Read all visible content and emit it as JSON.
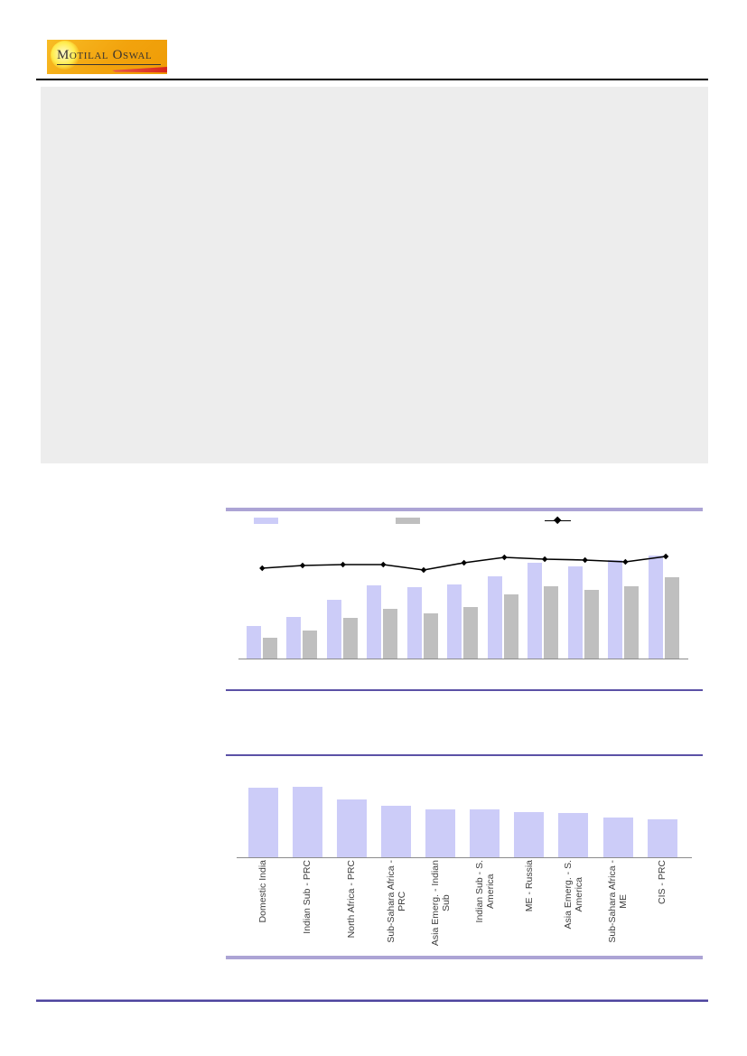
{
  "page": {
    "background": "#FFFFFF"
  },
  "header": {
    "logo": {
      "text": "Motilal Oswal",
      "bg_color": "#F2A30D",
      "text_color": "#393430",
      "swoosh_color": "#D8261B",
      "sun_color": "#FFEC4D"
    }
  },
  "summary_box": {
    "bg_color": "#EDEDED",
    "text": ""
  },
  "colors": {
    "bar_lavender": "#CCCCF8",
    "bar_gray": "#BFBFBF",
    "line_black": "#000000",
    "axis_gray": "#8C8C8C",
    "section_border_thick": "#ACA4D5",
    "divider_purple": "#5B51A6",
    "footer_line": "#4D449E",
    "label_text": "#3F3F3F"
  },
  "chart_data": [
    {
      "type": "bar",
      "subtype": "grouped-bars-with-line-overlay",
      "title": "",
      "xlabel": "",
      "ylabel": "",
      "axis_labels_visible": false,
      "grid": false,
      "legend": {
        "position": "top",
        "labels_visible": false,
        "entries": [
          {
            "label": "",
            "swatch": "#CCCCF8",
            "kind": "bar"
          },
          {
            "label": "",
            "swatch": "#BFBFBF",
            "kind": "bar"
          },
          {
            "label": "",
            "swatch": "#000000",
            "kind": "line-diamond"
          }
        ]
      },
      "categories": [
        "",
        "",
        "",
        "",
        "",
        "",
        "",
        "",
        "",
        "",
        ""
      ],
      "series": [
        {
          "name": "",
          "type": "bar",
          "color": "#CCCCF8",
          "values": [
            36,
            46,
            65,
            81,
            79,
            82,
            91,
            106,
            102,
            109,
            114
          ]
        },
        {
          "name": "",
          "type": "bar",
          "color": "#BFBFBF",
          "values": [
            23,
            31,
            45,
            55,
            50,
            57,
            71,
            80,
            76,
            80,
            90
          ]
        },
        {
          "name": "",
          "type": "line",
          "color": "#000000",
          "marker": "diamond",
          "values": [
            101,
            104,
            105,
            105,
            99,
            107,
            113,
            111,
            110,
            108,
            114
          ]
        }
      ],
      "value_note": "no numeric axis or data labels shown; values are relative heights in px"
    },
    {
      "type": "bar",
      "title": "",
      "xlabel": "",
      "ylabel": "",
      "axis_labels_visible": false,
      "grid": false,
      "x_tick_rotation": 90,
      "bar_color": "#CCCCF8",
      "categories": [
        "Domestic India",
        "Indian Sub - PRC",
        "North Africa - PRC",
        "Sub-Sahara Africa -\nPRC",
        "Asia Emerg. - Indian\nSub",
        "Indian Sub - S.\nAmerica",
        "ME - Russia",
        "Asia Emerg. - S.\nAmerica",
        "Sub-Sahara Africa -\nME",
        "CIS - PRC"
      ],
      "values": [
        77,
        78,
        64,
        57,
        53,
        53,
        50,
        49,
        44,
        42
      ],
      "value_note": "no numeric axis or data labels shown; values are relative heights in px"
    }
  ]
}
